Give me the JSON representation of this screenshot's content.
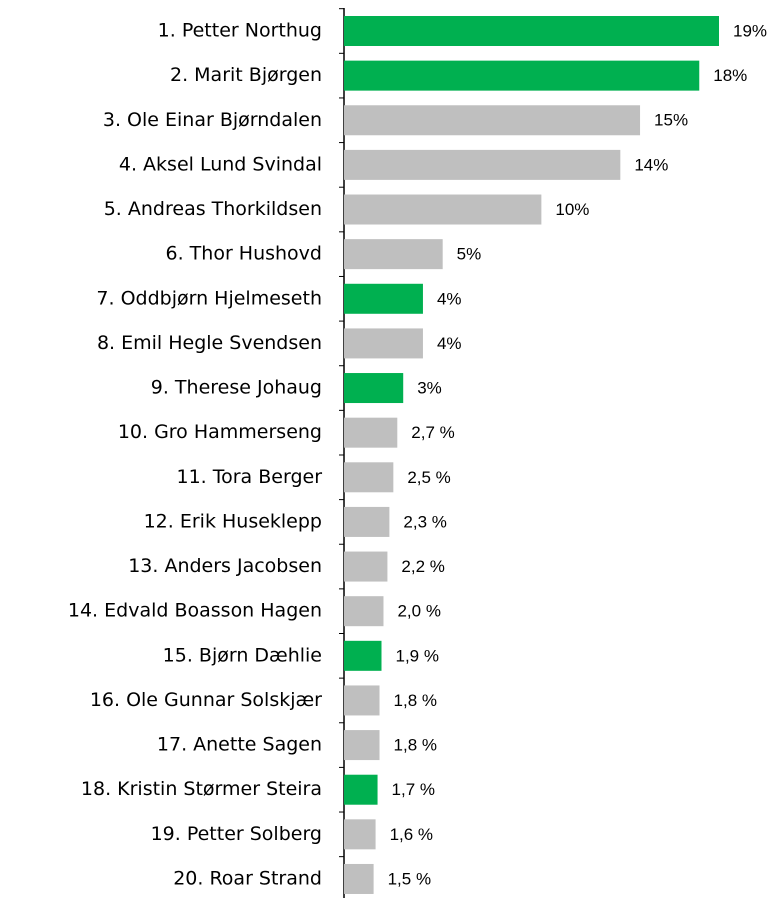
{
  "chart_data": {
    "type": "barh",
    "categories": [
      "1. Petter Northug",
      "2. Marit Bjørgen",
      "3. Ole Einar Bjørndalen",
      "4. Aksel Lund Svindal",
      "5. Andreas Thorkildsen",
      "6. Thor Hushovd",
      "7. Oddbjørn Hjelmeseth",
      "8. Emil Hegle Svendsen",
      "9. Therese Johaug",
      "10. Gro Hammerseng",
      "11. Tora Berger",
      "12. Erik Huseklepp",
      "13. Anders Jacobsen",
      "14. Edvald Boasson Hagen",
      "15. Bjørn Dæhlie",
      "16. Ole Gunnar Solskjær",
      "17. Anette Sagen",
      "18. Kristin Størmer Steira",
      "19. Petter Solberg",
      "20. Roar Strand"
    ],
    "values": [
      19,
      18,
      15,
      14,
      10,
      5,
      4,
      4,
      3,
      2.7,
      2.5,
      2.3,
      2.2,
      2.0,
      1.9,
      1.8,
      1.8,
      1.7,
      1.6,
      1.5
    ],
    "value_labels": [
      "19%",
      "18%",
      "15%",
      "14%",
      "10%",
      "5%",
      "4%",
      "4%",
      "3%",
      "2,7 %",
      "2,5 %",
      "2,3 %",
      "2,2 %",
      "2,0 %",
      "1,9 %",
      "1,8 %",
      "1,8 %",
      "1,7 %",
      "1,6 %",
      "1,5 %"
    ],
    "colors": [
      "#00b050",
      "#00b050",
      "#bfbfbf",
      "#bfbfbf",
      "#bfbfbf",
      "#bfbfbf",
      "#00b050",
      "#bfbfbf",
      "#00b050",
      "#bfbfbf",
      "#bfbfbf",
      "#bfbfbf",
      "#bfbfbf",
      "#bfbfbf",
      "#00b050",
      "#bfbfbf",
      "#bfbfbf",
      "#00b050",
      "#bfbfbf",
      "#bfbfbf"
    ]
  }
}
